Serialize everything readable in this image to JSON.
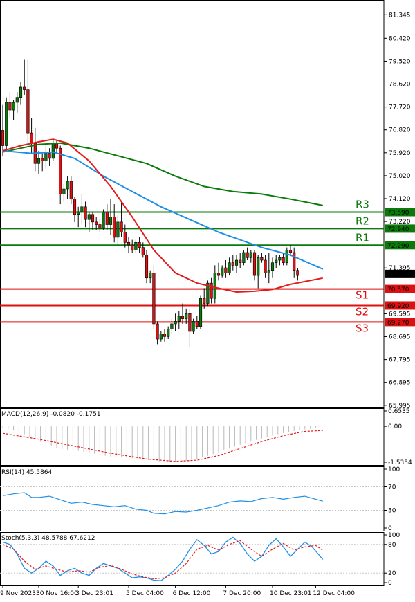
{
  "chart_data": {
    "type": "candlestick",
    "price_axis": {
      "range": [
        65.99,
        81.87
      ],
      "ticks": [
        "81.345",
        "80.420",
        "79.520",
        "78.620",
        "77.720",
        "76.820",
        "75.920",
        "75.020",
        "74.120",
        "73.220",
        "71.395",
        "69.595",
        "68.695",
        "67.795",
        "66.895",
        "65.995"
      ]
    },
    "time_axis": {
      "labels": [
        "9 Nov 2023",
        "30 Nov 16:00",
        "3 Dec 23:01",
        "5 Dec 04:00",
        "6 Dec 12:00",
        "7 Dec 20:00",
        "10 Dec 23:01",
        "12 Dec 04:00"
      ],
      "label_bar_index": [
        0,
        10,
        21,
        35,
        48,
        62,
        75,
        87
      ]
    },
    "current_price": "71.160",
    "levels": [
      {
        "name": "R3",
        "value": 73.59,
        "label": "73.590",
        "color": "#0a7a0a"
      },
      {
        "name": "R2",
        "value": 72.94,
        "label": "72.940",
        "color": "#0a7a0a"
      },
      {
        "name": "R1",
        "value": 72.29,
        "label": "72.290",
        "color": "#0a7a0a"
      },
      {
        "name": "S1",
        "value": 70.57,
        "label": "70.570",
        "color": "#dd1111"
      },
      {
        "name": "S2",
        "value": 69.92,
        "label": "69.920",
        "color": "#dd1111"
      },
      {
        "name": "S3",
        "value": 69.27,
        "label": "69.270",
        "color": "#dd1111"
      }
    ],
    "candles": [
      [
        76.8,
        77.8,
        75.8,
        76.2
      ],
      [
        76.2,
        78.1,
        76.0,
        77.9
      ],
      [
        77.9,
        78.3,
        77.3,
        77.6
      ],
      [
        77.6,
        78.0,
        77.2,
        77.9
      ],
      [
        77.9,
        78.3,
        77.5,
        78.1
      ],
      [
        78.1,
        78.7,
        77.8,
        78.5
      ],
      [
        78.5,
        79.6,
        78.2,
        78.4
      ],
      [
        78.4,
        79.6,
        76.2,
        76.7
      ],
      [
        76.7,
        77.3,
        75.9,
        76.3
      ],
      [
        76.3,
        76.9,
        75.2,
        75.5
      ],
      [
        75.5,
        76.0,
        75.1,
        75.7
      ],
      [
        75.7,
        75.9,
        75.2,
        75.6
      ],
      [
        75.6,
        76.2,
        75.3,
        75.9
      ],
      [
        75.9,
        76.1,
        75.4,
        75.7
      ],
      [
        75.7,
        76.4,
        75.6,
        76.3
      ],
      [
        76.3,
        76.4,
        75.9,
        76.1
      ],
      [
        76.1,
        76.2,
        73.9,
        74.3
      ],
      [
        74.3,
        74.7,
        74.0,
        74.5
      ],
      [
        74.5,
        75.0,
        74.1,
        74.8
      ],
      [
        74.8,
        75.0,
        73.9,
        74.1
      ],
      [
        74.1,
        74.2,
        73.2,
        73.5
      ],
      [
        73.5,
        73.8,
        73.0,
        73.6
      ],
      [
        73.6,
        74.3,
        73.1,
        73.8
      ],
      [
        73.8,
        74.0,
        73.0,
        73.3
      ],
      [
        73.3,
        73.6,
        72.8,
        73.5
      ],
      [
        73.5,
        73.6,
        72.9,
        73.2
      ],
      [
        73.2,
        73.4,
        72.9,
        73.1
      ],
      [
        73.1,
        73.3,
        72.8,
        72.95
      ],
      [
        72.95,
        73.7,
        72.9,
        73.6
      ],
      [
        73.6,
        73.9,
        72.9,
        73.1
      ],
      [
        73.1,
        74.1,
        72.7,
        73.4
      ],
      [
        73.4,
        73.9,
        72.4,
        72.6
      ],
      [
        72.6,
        73.5,
        72.3,
        73.2
      ],
      [
        73.2,
        74.0,
        72.6,
        72.8
      ],
      [
        72.8,
        73.1,
        72.2,
        72.4
      ],
      [
        72.4,
        72.6,
        72.0,
        72.3
      ],
      [
        72.3,
        72.5,
        72.0,
        72.1
      ],
      [
        72.1,
        72.5,
        72.0,
        72.4
      ],
      [
        72.4,
        72.6,
        72.0,
        72.2
      ],
      [
        72.2,
        72.4,
        71.8,
        71.9
      ],
      [
        71.9,
        72.1,
        70.8,
        71.0
      ],
      [
        71.0,
        71.3,
        70.8,
        71.2
      ],
      [
        71.2,
        71.5,
        69.0,
        69.2
      ],
      [
        69.2,
        69.3,
        68.4,
        68.6
      ],
      [
        68.6,
        68.9,
        68.5,
        68.8
      ],
      [
        68.8,
        69.0,
        68.5,
        68.7
      ],
      [
        68.7,
        69.1,
        68.6,
        69.0
      ],
      [
        69.0,
        69.4,
        68.8,
        69.2
      ],
      [
        69.2,
        69.6,
        68.9,
        69.3
      ],
      [
        69.3,
        69.7,
        69.0,
        69.5
      ],
      [
        69.5,
        70.0,
        69.2,
        69.4
      ],
      [
        69.4,
        69.8,
        69.2,
        69.6
      ],
      [
        69.6,
        69.8,
        68.3,
        68.9
      ],
      [
        68.9,
        69.4,
        68.8,
        69.3
      ],
      [
        69.3,
        69.5,
        69.0,
        69.1
      ],
      [
        69.1,
        70.3,
        69.0,
        70.2
      ],
      [
        70.2,
        70.6,
        69.8,
        70.0
      ],
      [
        70.0,
        70.9,
        69.9,
        70.8
      ],
      [
        70.8,
        71.0,
        70.0,
        70.2
      ],
      [
        70.2,
        71.5,
        70.0,
        71.2
      ],
      [
        71.2,
        71.6,
        70.9,
        71.1
      ],
      [
        71.1,
        71.5,
        71.0,
        71.4
      ],
      [
        71.4,
        71.7,
        71.0,
        71.2
      ],
      [
        71.2,
        71.8,
        71.1,
        71.6
      ],
      [
        71.6,
        71.9,
        71.3,
        71.5
      ],
      [
        71.5,
        71.9,
        71.2,
        71.7
      ],
      [
        71.7,
        72.0,
        71.4,
        71.6
      ],
      [
        71.6,
        72.1,
        71.5,
        72.0
      ],
      [
        72.0,
        72.2,
        71.7,
        71.8
      ],
      [
        71.8,
        72.1,
        71.6,
        72.0
      ],
      [
        72.0,
        72.1,
        70.9,
        71.1
      ],
      [
        71.1,
        71.9,
        70.6,
        71.8
      ],
      [
        71.8,
        72.0,
        71.6,
        71.7
      ],
      [
        71.7,
        71.9,
        71.0,
        71.2
      ],
      [
        71.2,
        72.0,
        70.8,
        71.3
      ],
      [
        71.3,
        71.8,
        71.0,
        71.6
      ],
      [
        71.6,
        71.9,
        71.4,
        71.7
      ],
      [
        71.7,
        71.9,
        71.5,
        71.8
      ],
      [
        71.8,
        72.0,
        71.5,
        71.6
      ],
      [
        71.6,
        72.2,
        71.5,
        72.1
      ],
      [
        72.1,
        72.3,
        71.9,
        72.0
      ],
      [
        72.0,
        72.2,
        71.0,
        71.3
      ],
      [
        71.3,
        71.4,
        70.9,
        71.1
      ]
    ],
    "ma_lines": [
      {
        "name": "ma-green",
        "color": "#0a7a0a",
        "points": [
          [
            0,
            75.95
          ],
          [
            10,
            76.25
          ],
          [
            16,
            76.3
          ],
          [
            24,
            76.1
          ],
          [
            32,
            75.8
          ],
          [
            40,
            75.5
          ],
          [
            48,
            75.0
          ],
          [
            56,
            74.6
          ],
          [
            64,
            74.4
          ],
          [
            72,
            74.3
          ],
          [
            80,
            74.1
          ],
          [
            89,
            73.85
          ]
        ]
      },
      {
        "name": "ma-blue",
        "color": "#1e8fe6",
        "points": [
          [
            0,
            76.0
          ],
          [
            8,
            75.9
          ],
          [
            14,
            75.95
          ],
          [
            20,
            75.7
          ],
          [
            28,
            75.0
          ],
          [
            36,
            74.4
          ],
          [
            44,
            73.8
          ],
          [
            52,
            73.3
          ],
          [
            60,
            72.8
          ],
          [
            66,
            72.5
          ],
          [
            72,
            72.2
          ],
          [
            80,
            71.9
          ],
          [
            89,
            71.35
          ]
        ]
      },
      {
        "name": "ma-red",
        "color": "#e31a1a",
        "points": [
          [
            0,
            76.0
          ],
          [
            5,
            76.2
          ],
          [
            10,
            76.35
          ],
          [
            14,
            76.45
          ],
          [
            18,
            76.3
          ],
          [
            24,
            75.6
          ],
          [
            30,
            74.6
          ],
          [
            36,
            73.4
          ],
          [
            42,
            72.1
          ],
          [
            48,
            71.2
          ],
          [
            54,
            70.8
          ],
          [
            60,
            70.6
          ],
          [
            65,
            70.45
          ],
          [
            70,
            70.48
          ],
          [
            75,
            70.55
          ],
          [
            80,
            70.75
          ],
          [
            89,
            71.0
          ]
        ]
      }
    ],
    "macd": {
      "label": "MACD(12,26,9) -0.0820 -0.1751",
      "ticks": [
        "0.6535",
        "0.00",
        "-1.5354"
      ],
      "range": [
        -1.5354,
        0.6535
      ],
      "hist": [
        -0.08,
        -0.12,
        -0.18,
        -0.25,
        -0.34,
        -0.44,
        -0.55,
        -0.66,
        -0.76,
        -0.85,
        -0.92,
        -0.97,
        -1.0,
        -1.02,
        -1.05,
        -1.08,
        -1.12,
        -1.17,
        -1.22,
        -1.26,
        -1.29,
        -1.31,
        -1.33,
        -1.35,
        -1.37,
        -1.39,
        -1.42,
        -1.45,
        -1.48,
        -1.5,
        -1.52,
        -1.53,
        -1.53,
        -1.51,
        -1.48,
        -1.44,
        -1.39,
        -1.33,
        -1.26,
        -1.19,
        -1.11,
        -1.03,
        -0.95,
        -0.87,
        -0.79,
        -0.72,
        -0.65,
        -0.58,
        -0.52,
        -0.46,
        -0.4,
        -0.34,
        -0.29,
        -0.24,
        -0.2,
        -0.16,
        -0.13,
        -0.1,
        -0.08
      ],
      "signal": [
        [
          0,
          -0.3
        ],
        [
          10,
          -0.55
        ],
        [
          20,
          -0.85
        ],
        [
          30,
          -1.15
        ],
        [
          40,
          -1.4
        ],
        [
          48,
          -1.5
        ],
        [
          54,
          -1.45
        ],
        [
          60,
          -1.25
        ],
        [
          66,
          -0.95
        ],
        [
          72,
          -0.65
        ],
        [
          78,
          -0.4
        ],
        [
          84,
          -0.22
        ],
        [
          89,
          -0.18
        ]
      ]
    },
    "rsi": {
      "label": "RSI(14) 45.5864",
      "ticks": [
        "100",
        "70",
        "30",
        "0"
      ],
      "range": [
        0,
        100
      ],
      "points": [
        [
          0,
          55
        ],
        [
          3,
          58
        ],
        [
          6,
          60
        ],
        [
          8,
          52
        ],
        [
          10,
          52
        ],
        [
          13,
          54
        ],
        [
          16,
          48
        ],
        [
          19,
          42
        ],
        [
          22,
          44
        ],
        [
          25,
          40
        ],
        [
          28,
          38
        ],
        [
          31,
          36
        ],
        [
          34,
          38
        ],
        [
          37,
          32
        ],
        [
          40,
          30
        ],
        [
          42,
          25
        ],
        [
          45,
          24
        ],
        [
          48,
          28
        ],
        [
          51,
          27
        ],
        [
          54,
          30
        ],
        [
          57,
          34
        ],
        [
          60,
          38
        ],
        [
          63,
          44
        ],
        [
          66,
          46
        ],
        [
          69,
          45
        ],
        [
          72,
          50
        ],
        [
          75,
          52
        ],
        [
          78,
          49
        ],
        [
          81,
          52
        ],
        [
          84,
          54
        ],
        [
          87,
          49
        ],
        [
          89,
          45.6
        ]
      ]
    },
    "stoch": {
      "label": "Stoch(5,3,3) 48.5788 67.6212",
      "ticks": [
        "100",
        "80",
        "20",
        "0"
      ],
      "range": [
        0,
        100
      ],
      "k": [
        [
          0,
          85
        ],
        [
          2,
          80
        ],
        [
          4,
          60
        ],
        [
          6,
          30
        ],
        [
          8,
          20
        ],
        [
          10,
          30
        ],
        [
          12,
          45
        ],
        [
          14,
          35
        ],
        [
          16,
          15
        ],
        [
          18,
          25
        ],
        [
          20,
          30
        ],
        [
          22,
          20
        ],
        [
          24,
          15
        ],
        [
          26,
          30
        ],
        [
          28,
          40
        ],
        [
          30,
          35
        ],
        [
          32,
          30
        ],
        [
          34,
          20
        ],
        [
          36,
          10
        ],
        [
          38,
          12
        ],
        [
          40,
          10
        ],
        [
          42,
          5
        ],
        [
          44,
          4
        ],
        [
          46,
          15
        ],
        [
          48,
          28
        ],
        [
          50,
          45
        ],
        [
          52,
          70
        ],
        [
          54,
          90
        ],
        [
          56,
          78
        ],
        [
          58,
          60
        ],
        [
          60,
          65
        ],
        [
          62,
          85
        ],
        [
          64,
          95
        ],
        [
          66,
          82
        ],
        [
          68,
          60
        ],
        [
          70,
          45
        ],
        [
          72,
          55
        ],
        [
          74,
          78
        ],
        [
          76,
          92
        ],
        [
          78,
          75
        ],
        [
          80,
          55
        ],
        [
          82,
          70
        ],
        [
          84,
          85
        ],
        [
          86,
          75
        ],
        [
          89,
          48.6
        ]
      ],
      "d": [
        [
          0,
          80
        ],
        [
          3,
          70
        ],
        [
          6,
          45
        ],
        [
          9,
          28
        ],
        [
          12,
          35
        ],
        [
          15,
          28
        ],
        [
          18,
          22
        ],
        [
          21,
          25
        ],
        [
          24,
          22
        ],
        [
          27,
          32
        ],
        [
          30,
          36
        ],
        [
          33,
          28
        ],
        [
          36,
          18
        ],
        [
          39,
          12
        ],
        [
          42,
          8
        ],
        [
          45,
          10
        ],
        [
          48,
          20
        ],
        [
          51,
          40
        ],
        [
          54,
          70
        ],
        [
          57,
          78
        ],
        [
          60,
          68
        ],
        [
          63,
          80
        ],
        [
          66,
          88
        ],
        [
          69,
          70
        ],
        [
          72,
          55
        ],
        [
          75,
          70
        ],
        [
          78,
          82
        ],
        [
          81,
          68
        ],
        [
          84,
          75
        ],
        [
          87,
          78
        ],
        [
          89,
          67.6
        ]
      ]
    }
  }
}
